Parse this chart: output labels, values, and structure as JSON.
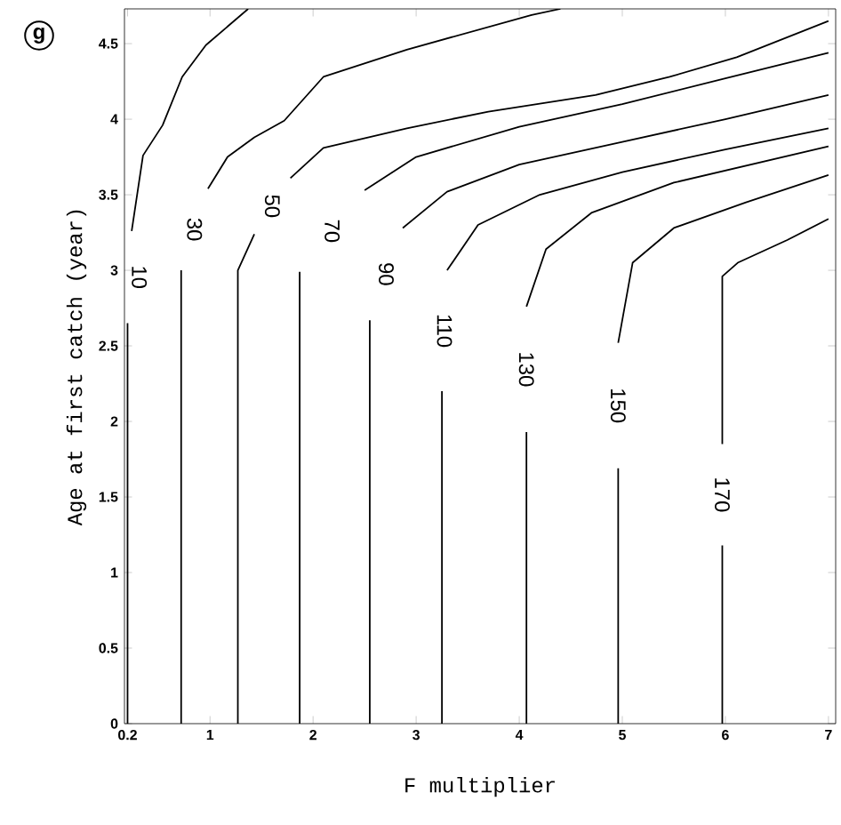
{
  "chart_data": {
    "type": "line",
    "xlabel": "F multiplier",
    "ylabel": "Age at first catch (year)",
    "annotations": [
      "g"
    ],
    "xlim": [
      0.17,
      7.07
    ],
    "ylim": [
      0,
      4.73
    ],
    "xticks": [
      0.2,
      1,
      2,
      3,
      4,
      5,
      6,
      7
    ],
    "yticks": [
      0,
      0.5,
      1,
      1.5,
      2,
      2.5,
      3,
      3.5,
      4,
      4.5
    ],
    "series": [
      {
        "name": "10",
        "color": "#000000",
        "x": [
          0.2,
          0.2,
          null,
          0.24,
          0.35,
          0.54,
          0.73,
          0.96,
          1.37
        ],
        "values": [
          0,
          2.65,
          null,
          3.26,
          3.76,
          3.96,
          4.28,
          4.49,
          4.73
        ]
      },
      {
        "name": "30",
        "color": "#000000",
        "x": [
          0.72,
          0.72,
          null,
          0.98,
          1.17,
          1.43,
          1.72,
          2.1,
          2.91,
          4.12,
          4.4
        ],
        "values": [
          0,
          3.0,
          null,
          3.54,
          3.75,
          3.88,
          3.99,
          4.28,
          4.46,
          4.69,
          4.73
        ]
      },
      {
        "name": "50",
        "color": "#000000",
        "x": [
          1.27,
          1.27,
          1.43,
          null,
          1.78,
          2.1,
          2.91,
          3.7,
          4.74,
          5.46,
          6.11,
          7.0
        ],
        "values": [
          0,
          3.0,
          3.24,
          null,
          3.61,
          3.81,
          3.94,
          4.05,
          4.16,
          4.28,
          4.41,
          4.65
        ]
      },
      {
        "name": "70",
        "color": "#000000",
        "x": [
          1.87,
          1.87,
          null,
          2.5,
          3.0,
          4.0,
          5.0,
          6.0,
          7.0
        ],
        "values": [
          0,
          2.99,
          null,
          3.53,
          3.75,
          3.95,
          4.1,
          4.27,
          4.44
        ]
      },
      {
        "name": "90",
        "color": "#000000",
        "x": [
          2.55,
          2.55,
          null,
          2.87,
          3.3,
          4.0,
          5.0,
          6.0,
          7.0
        ],
        "values": [
          0,
          2.67,
          null,
          3.28,
          3.52,
          3.7,
          3.85,
          4.0,
          4.16
        ]
      },
      {
        "name": "110",
        "color": "#000000",
        "x": [
          3.25,
          3.25,
          null,
          3.3,
          3.6,
          4.2,
          5.0,
          6.0,
          7.0
        ],
        "values": [
          0,
          2.2,
          null,
          3.0,
          3.3,
          3.5,
          3.65,
          3.8,
          3.94
        ]
      },
      {
        "name": "130",
        "color": "#000000",
        "x": [
          4.07,
          4.07,
          null,
          4.07,
          4.26,
          4.7,
          5.5,
          7.0
        ],
        "values": [
          0,
          1.93,
          null,
          2.76,
          3.14,
          3.38,
          3.58,
          3.82
        ]
      },
      {
        "name": "150",
        "color": "#000000",
        "x": [
          4.96,
          4.96,
          null,
          4.96,
          5.1,
          5.5,
          6.2,
          7.0
        ],
        "values": [
          0,
          1.69,
          null,
          2.52,
          3.05,
          3.28,
          3.45,
          3.63
        ]
      },
      {
        "name": "170",
        "color": "#000000",
        "x": [
          5.97,
          5.97,
          null,
          5.97,
          5.97,
          6.12,
          6.6,
          7.0
        ],
        "values": [
          0,
          1.18,
          null,
          1.85,
          2.96,
          3.05,
          3.2,
          3.34
        ]
      }
    ]
  }
}
